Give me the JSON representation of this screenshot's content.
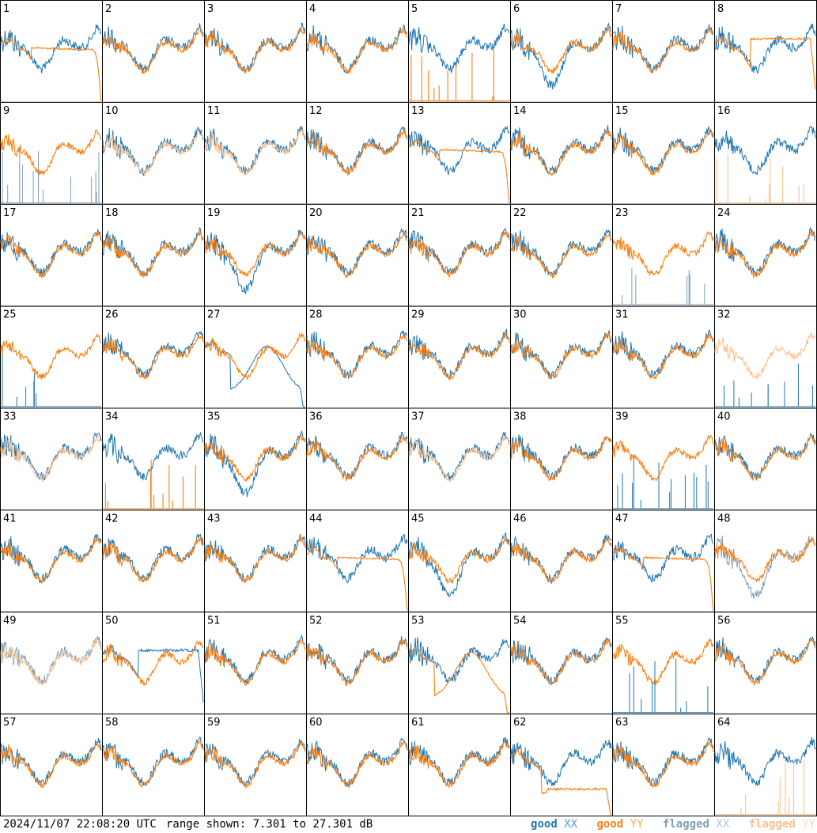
{
  "chart_data": {
    "type": "line",
    "layout": "small-multiples",
    "rows": 8,
    "cols": 8,
    "panel_labels": [
      "1",
      "2",
      "3",
      "4",
      "5",
      "6",
      "7",
      "8",
      "9",
      "10",
      "11",
      "12",
      "13",
      "14",
      "15",
      "16",
      "17",
      "18",
      "19",
      "20",
      "21",
      "22",
      "23",
      "24",
      "25",
      "26",
      "27",
      "28",
      "29",
      "30",
      "31",
      "32",
      "33",
      "34",
      "35",
      "36",
      "37",
      "38",
      "39",
      "40",
      "41",
      "42",
      "43",
      "44",
      "45",
      "46",
      "47",
      "48",
      "49",
      "50",
      "51",
      "52",
      "53",
      "54",
      "55",
      "56",
      "57",
      "58",
      "59",
      "60",
      "61",
      "62",
      "63",
      "64"
    ],
    "y_range_db": [
      7.301,
      27.301
    ],
    "x_axis": "frequency channel (unlabeled)",
    "series_styles": {
      "good_xx": "#1f77b4",
      "good_yy": "#ff7f0e",
      "flagged_xx": "#7f9fb8",
      "flagged_yy": "#ffc08a"
    },
    "series": [
      {
        "name": "good XX"
      },
      {
        "name": "good YY"
      },
      {
        "name": "flagged XX"
      },
      {
        "name": "flagged YY"
      }
    ],
    "panels": [
      {
        "id": 1,
        "xx": "good",
        "yy": "good",
        "yy_variant": "rolloff",
        "xx_variant": "normal"
      },
      {
        "id": 2,
        "xx": "good",
        "yy": "good"
      },
      {
        "id": 3,
        "xx": "good",
        "yy": "good"
      },
      {
        "id": 4,
        "xx": "good",
        "yy": "good"
      },
      {
        "id": 5,
        "xx": "good",
        "yy": "good",
        "yy_variant": "spikes"
      },
      {
        "id": 6,
        "xx": "good",
        "yy": "good",
        "xx_variant": "dip"
      },
      {
        "id": 7,
        "xx": "good",
        "yy": "good"
      },
      {
        "id": 8,
        "xx": "good",
        "yy": "good",
        "yy_variant": "flat"
      },
      {
        "id": 9,
        "xx": "flagged",
        "yy": "good",
        "xx_variant": "spikes"
      },
      {
        "id": 10,
        "xx": "good",
        "yy": "flagged"
      },
      {
        "id": 11,
        "xx": "good",
        "yy": "flagged"
      },
      {
        "id": 12,
        "xx": "good",
        "yy": "good"
      },
      {
        "id": 13,
        "xx": "good",
        "yy": "good",
        "yy_variant": "rolloff"
      },
      {
        "id": 14,
        "xx": "good",
        "yy": "good"
      },
      {
        "id": 15,
        "xx": "good",
        "yy": "good"
      },
      {
        "id": 16,
        "xx": "good",
        "yy": "flagged",
        "yy_variant": "spikes"
      },
      {
        "id": 17,
        "xx": "good",
        "yy": "good"
      },
      {
        "id": 18,
        "xx": "good",
        "yy": "good"
      },
      {
        "id": 19,
        "xx": "good",
        "yy": "good",
        "xx_variant": "dip"
      },
      {
        "id": 20,
        "xx": "good",
        "yy": "good"
      },
      {
        "id": 21,
        "xx": "good",
        "yy": "good"
      },
      {
        "id": 22,
        "xx": "good",
        "yy": "good"
      },
      {
        "id": 23,
        "xx": "flagged",
        "yy": "good",
        "xx_variant": "spikes"
      },
      {
        "id": 24,
        "xx": "good",
        "yy": "good"
      },
      {
        "id": 25,
        "xx": "good",
        "yy": "good",
        "xx_variant": "spikes"
      },
      {
        "id": 26,
        "xx": "good",
        "yy": "good"
      },
      {
        "id": 27,
        "xx": "good",
        "yy": "good",
        "xx_variant": "bump"
      },
      {
        "id": 28,
        "xx": "good",
        "yy": "good"
      },
      {
        "id": 29,
        "xx": "good",
        "yy": "good"
      },
      {
        "id": 30,
        "xx": "good",
        "yy": "good"
      },
      {
        "id": 31,
        "xx": "good",
        "yy": "good"
      },
      {
        "id": 32,
        "xx": "good",
        "yy": "flagged",
        "xx_variant": "spikes"
      },
      {
        "id": 33,
        "xx": "good",
        "yy": "flagged"
      },
      {
        "id": 34,
        "xx": "good",
        "yy": "good",
        "yy_variant": "spikes"
      },
      {
        "id": 35,
        "xx": "good",
        "yy": "good",
        "xx_variant": "dip"
      },
      {
        "id": 36,
        "xx": "good",
        "yy": "good"
      },
      {
        "id": 37,
        "xx": "good",
        "yy": "flagged"
      },
      {
        "id": 38,
        "xx": "good",
        "yy": "good"
      },
      {
        "id": 39,
        "xx": "good",
        "yy": "good",
        "xx_variant": "spikes"
      },
      {
        "id": 40,
        "xx": "good",
        "yy": "good"
      },
      {
        "id": 41,
        "xx": "good",
        "yy": "good"
      },
      {
        "id": 42,
        "xx": "good",
        "yy": "good"
      },
      {
        "id": 43,
        "xx": "good",
        "yy": "good"
      },
      {
        "id": 44,
        "xx": "good",
        "yy": "good",
        "yy_variant": "rolloff"
      },
      {
        "id": 45,
        "xx": "good",
        "yy": "good",
        "xx_variant": "dip"
      },
      {
        "id": 46,
        "xx": "good",
        "yy": "good"
      },
      {
        "id": 47,
        "xx": "good",
        "yy": "good",
        "yy_variant": "rolloff"
      },
      {
        "id": 48,
        "xx": "flagged",
        "yy": "good",
        "xx_variant": "dip"
      },
      {
        "id": 49,
        "xx": "flagged",
        "yy": "flagged"
      },
      {
        "id": 50,
        "xx": "good",
        "yy": "good",
        "xx_variant": "flat"
      },
      {
        "id": 51,
        "xx": "good",
        "yy": "good"
      },
      {
        "id": 52,
        "xx": "good",
        "yy": "good"
      },
      {
        "id": 53,
        "xx": "good",
        "yy": "good",
        "yy_variant": "bump"
      },
      {
        "id": 54,
        "xx": "good",
        "yy": "good"
      },
      {
        "id": 55,
        "xx": "good",
        "yy": "good",
        "xx_variant": "spikes"
      },
      {
        "id": 56,
        "xx": "good",
        "yy": "good"
      },
      {
        "id": 57,
        "xx": "good",
        "yy": "good"
      },
      {
        "id": 58,
        "xx": "good",
        "yy": "good"
      },
      {
        "id": 59,
        "xx": "good",
        "yy": "good"
      },
      {
        "id": 60,
        "xx": "good",
        "yy": "good"
      },
      {
        "id": 61,
        "xx": "good",
        "yy": "good"
      },
      {
        "id": 62,
        "xx": "good",
        "yy": "good",
        "yy_variant": "lowflat"
      },
      {
        "id": 63,
        "xx": "good",
        "yy": "good"
      },
      {
        "id": 64,
        "xx": "good",
        "yy": "flagged",
        "yy_variant": "spikes"
      }
    ]
  },
  "footer": {
    "timestamp": "2024/11/07 22:08:20 UTC",
    "range_label": "range shown: 7.301 to 27.301 dB",
    "legend": [
      {
        "name": "good",
        "pol": "XX",
        "color": "#1f77b4",
        "pol_color": "#4f9fd8"
      },
      {
        "name": "good",
        "pol": "YY",
        "color": "#ff7f0e",
        "pol_color": "#ffa54f"
      },
      {
        "name": "flagged",
        "pol": "XX",
        "color": "#7f9fb8",
        "pol_color": "#aac6e0"
      },
      {
        "name": "flagged",
        "pol": "YY",
        "color": "#ffc08a",
        "pol_color": "#ffd6b0"
      }
    ]
  }
}
